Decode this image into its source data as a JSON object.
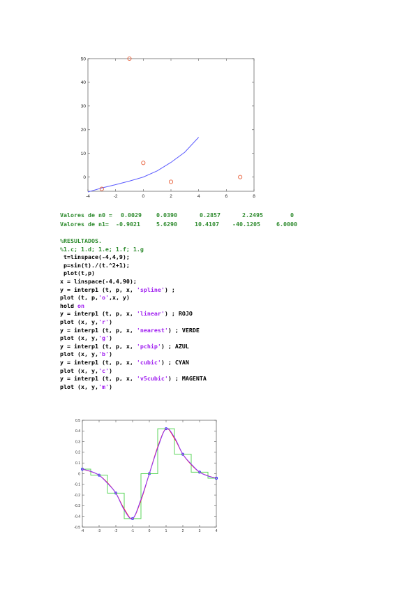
{
  "chart_data": [
    {
      "type": "line",
      "xlim": [
        -4,
        8
      ],
      "ylim": [
        -6,
        50
      ],
      "xticks": [
        "-4",
        "-2",
        "0",
        "2",
        "4",
        "6",
        "8"
      ],
      "yticks": [
        "0",
        "10",
        "20",
        "30",
        "40",
        "50"
      ],
      "grid": false,
      "series": [
        {
          "style": "line",
          "color": "#5b5bff",
          "x": [
            -4,
            -3,
            -2,
            -1,
            0,
            1,
            2,
            3,
            4
          ],
          "y": [
            -6.3,
            -4.6,
            -3.2,
            -1.7,
            0.0,
            2.6,
            6.2,
            10.5,
            16.8
          ]
        },
        {
          "style": "markers",
          "color": "#e8603a",
          "x": [
            -3,
            -1,
            0,
            2,
            7
          ],
          "y": [
            -5,
            50,
            6,
            -2,
            0
          ]
        }
      ]
    },
    {
      "type": "line",
      "xlim": [
        -4,
        4
      ],
      "ylim": [
        -0.5,
        0.5
      ],
      "xticks": [
        "-4",
        "-3",
        "-2",
        "-1",
        "0",
        "1",
        "2",
        "3",
        "4"
      ],
      "yticks": [
        "-0.5",
        "-0.4",
        "-0.3",
        "-0.2",
        "-0.1",
        "0",
        "0.1",
        "0.2",
        "0.3",
        "0.4",
        "0.5"
      ],
      "grid": false,
      "series": [
        {
          "style": "markers",
          "color": "#2a2aff",
          "x": [
            -4,
            -3,
            -2,
            -1,
            0,
            1,
            2,
            3,
            4
          ],
          "y": [
            0.0424,
            -0.0141,
            -0.1819,
            -0.4207,
            0.0,
            0.4207,
            0.1819,
            0.0141,
            -0.0424
          ]
        },
        {
          "style": "step",
          "color": "#5bd65b",
          "x": [
            -4,
            -3,
            -2,
            -1,
            0,
            1,
            2,
            3,
            4
          ],
          "y": [
            0.0424,
            -0.0141,
            -0.1819,
            -0.4207,
            0.0,
            0.4207,
            0.1819,
            0.0141,
            -0.0424
          ]
        },
        {
          "style": "smooth",
          "color": "#ff2020",
          "x": [
            -4,
            -3.5,
            -3,
            -2.5,
            -2,
            -1.5,
            -1,
            -0.5,
            0,
            0.5,
            1,
            1.5,
            2,
            2.5,
            3,
            3.5,
            4
          ],
          "y": [
            0.0424,
            0.02,
            -0.0141,
            -0.085,
            -0.1819,
            -0.33,
            -0.4207,
            -0.25,
            0.0,
            0.25,
            0.4207,
            0.33,
            0.1819,
            0.085,
            0.0141,
            -0.02,
            -0.0424
          ]
        },
        {
          "style": "smooth",
          "color": "#8a3aff",
          "x": [
            -4,
            -3.5,
            -3,
            -2.5,
            -2,
            -1.5,
            -1,
            -0.5,
            0,
            0.5,
            1,
            1.5,
            2,
            2.5,
            3,
            3.5,
            4
          ],
          "y": [
            0.0424,
            0.022,
            -0.0141,
            -0.09,
            -0.1819,
            -0.34,
            -0.4207,
            -0.24,
            0.0,
            0.24,
            0.4207,
            0.34,
            0.1819,
            0.09,
            0.0141,
            -0.022,
            -0.0424
          ]
        }
      ]
    }
  ],
  "values_n0": {
    "label": "Valores de n0 =",
    "values": [
      "0.0029",
      "0.0390",
      "0.2857",
      "2.2495",
      "0"
    ]
  },
  "values_n1": {
    "label": "Valores de n1=",
    "values": [
      "-0.9021",
      "5.6290",
      "10.4107",
      "-40.1205",
      "6.0000"
    ]
  },
  "code": {
    "c1": "%RESULTADOS.",
    "c2": "%1.c; 1.d; 1.e; 1.f; 1.g",
    "l1": " t=linspace(-4,4,9);",
    "l2": " p=sin(t)./(t.^2+1);",
    "l3": " plot(t,p)",
    "l4": "x = linspace(-4,4,90);",
    "l5a": "y = interp1 (t, p, x, ",
    "l5s": "'spline'",
    "l5b": ") ;",
    "l6a": "plot (t, p,",
    "l6s": "'o'",
    "l6b": ",x, y)",
    "l7a": "hold ",
    "l7k": "on",
    "l8a": "y = interp1 (t, p, x, ",
    "l8s": "'linear'",
    "l8b": ") ; ROJO",
    "l9a": "plot (x, y,",
    "l9s": "'r'",
    "l9b": ")",
    "l10a": "y = interp1 (t, p, x, ",
    "l10s": "'nearest'",
    "l10b": ") ; VERDE",
    "l11a": "plot (x, y,",
    "l11s": "'g'",
    "l11b": ")",
    "l12a": "y = interp1 (t, p, x, ",
    "l12s": "'pchip'",
    "l12b": ") ; AZUL",
    "l13a": "plot (x, y,",
    "l13s": "'b'",
    "l13b": ")",
    "l14a": "y = interp1 (t, p, x, ",
    "l14s": "'cubic'",
    "l14b": ") ; CYAN",
    "l15a": "plot (x, y,",
    "l15s": "'c'",
    "l15b": ")",
    "l16a": "y = interp1 (t, p, x, ",
    "l16s": "'v5cubic'",
    "l16b": ") ; MAGENTA",
    "l17a": "plot (x, y,",
    "l17s": "'m'",
    "l17b": ")"
  }
}
